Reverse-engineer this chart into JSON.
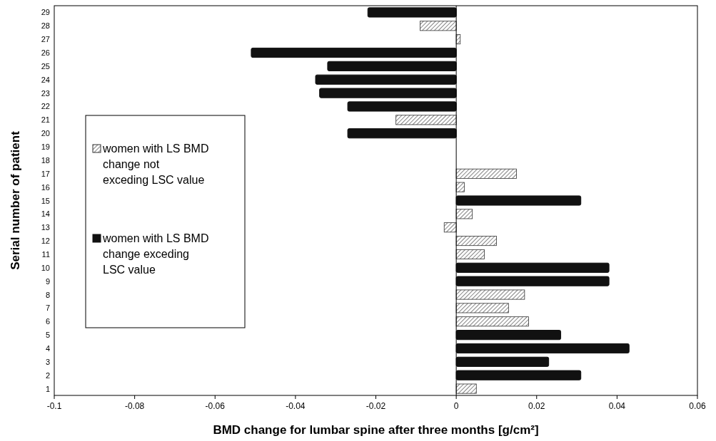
{
  "chart_data": {
    "type": "bar",
    "orientation": "horizontal",
    "xlabel": "BMD change for lumbar spine after three months [g/cm²]",
    "ylabel": "Serial number of patient",
    "categories": [
      "29",
      "28",
      "27",
      "26",
      "25",
      "24",
      "23",
      "22",
      "21",
      "20",
      "19",
      "18",
      "17",
      "16",
      "15",
      "14",
      "13",
      "12",
      "11",
      "10",
      "9",
      "8",
      "7",
      "6",
      "5",
      "4",
      "3",
      "2",
      "1"
    ],
    "series": [
      {
        "name": "women with LS BMD change not exceding LSC value",
        "color": "#333333",
        "values": [
          null,
          -0.009,
          0.001,
          null,
          null,
          null,
          null,
          null,
          -0.015,
          null,
          null,
          null,
          0.015,
          0.002,
          null,
          0.004,
          -0.003,
          0.01,
          0.007,
          null,
          null,
          0.017,
          0.013,
          0.018,
          null,
          null,
          null,
          null,
          0.005
        ]
      },
      {
        "name": "women with LS BMD change exceding LSC value",
        "color": "#111111",
        "values": [
          -0.022,
          null,
          null,
          -0.051,
          -0.032,
          -0.035,
          -0.034,
          -0.027,
          null,
          -0.027,
          null,
          null,
          null,
          null,
          0.031,
          null,
          null,
          null,
          null,
          0.038,
          0.038,
          null,
          null,
          null,
          0.026,
          0.043,
          0.023,
          0.031,
          null
        ]
      }
    ],
    "xlim": [
      -0.1,
      0.06
    ],
    "xticks": [
      -0.1,
      -0.08,
      -0.06,
      -0.04,
      -0.02,
      0,
      0.02,
      0.04,
      0.06
    ],
    "legend": "center left"
  }
}
